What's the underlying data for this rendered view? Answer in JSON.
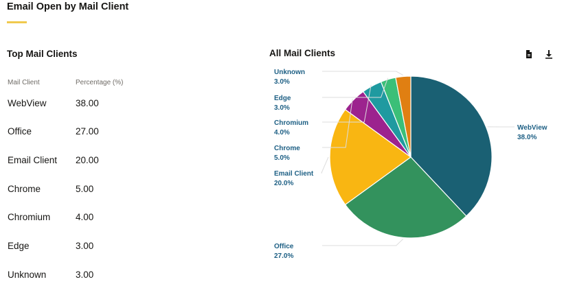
{
  "header": {
    "title": "Email Open by Mail Client"
  },
  "table": {
    "title": "Top Mail Clients",
    "columns": [
      "Mail Client",
      "Percentage (%)"
    ],
    "rows": [
      [
        "WebView",
        "38.00"
      ],
      [
        "Office",
        "27.00"
      ],
      [
        "Email Client",
        "20.00"
      ],
      [
        "Chrome",
        "5.00"
      ],
      [
        "Chromium",
        "4.00"
      ],
      [
        "Edge",
        "3.00"
      ],
      [
        "Unknown",
        "3.00"
      ]
    ]
  },
  "chart_panel": {
    "title": "All Mail Clients",
    "icons": [
      "document-icon",
      "download-icon"
    ]
  },
  "chart_data": {
    "type": "pie",
    "title": "All Mail Clients",
    "categories": [
      "WebView",
      "Office",
      "Email Client",
      "Chrome",
      "Chromium",
      "Edge",
      "Unknown"
    ],
    "values": [
      38.0,
      27.0,
      20.0,
      5.0,
      4.0,
      3.0,
      3.0
    ],
    "labels": [
      "38.0%",
      "27.0%",
      "20.0%",
      "5.0%",
      "4.0%",
      "3.0%",
      "3.0%"
    ],
    "colors": [
      "#1a6073",
      "#33925d",
      "#f9b612",
      "#9c238e",
      "#1f9aa0",
      "#3bbf78",
      "#e07f12"
    ],
    "start": "12 o'clock, clockwise"
  }
}
